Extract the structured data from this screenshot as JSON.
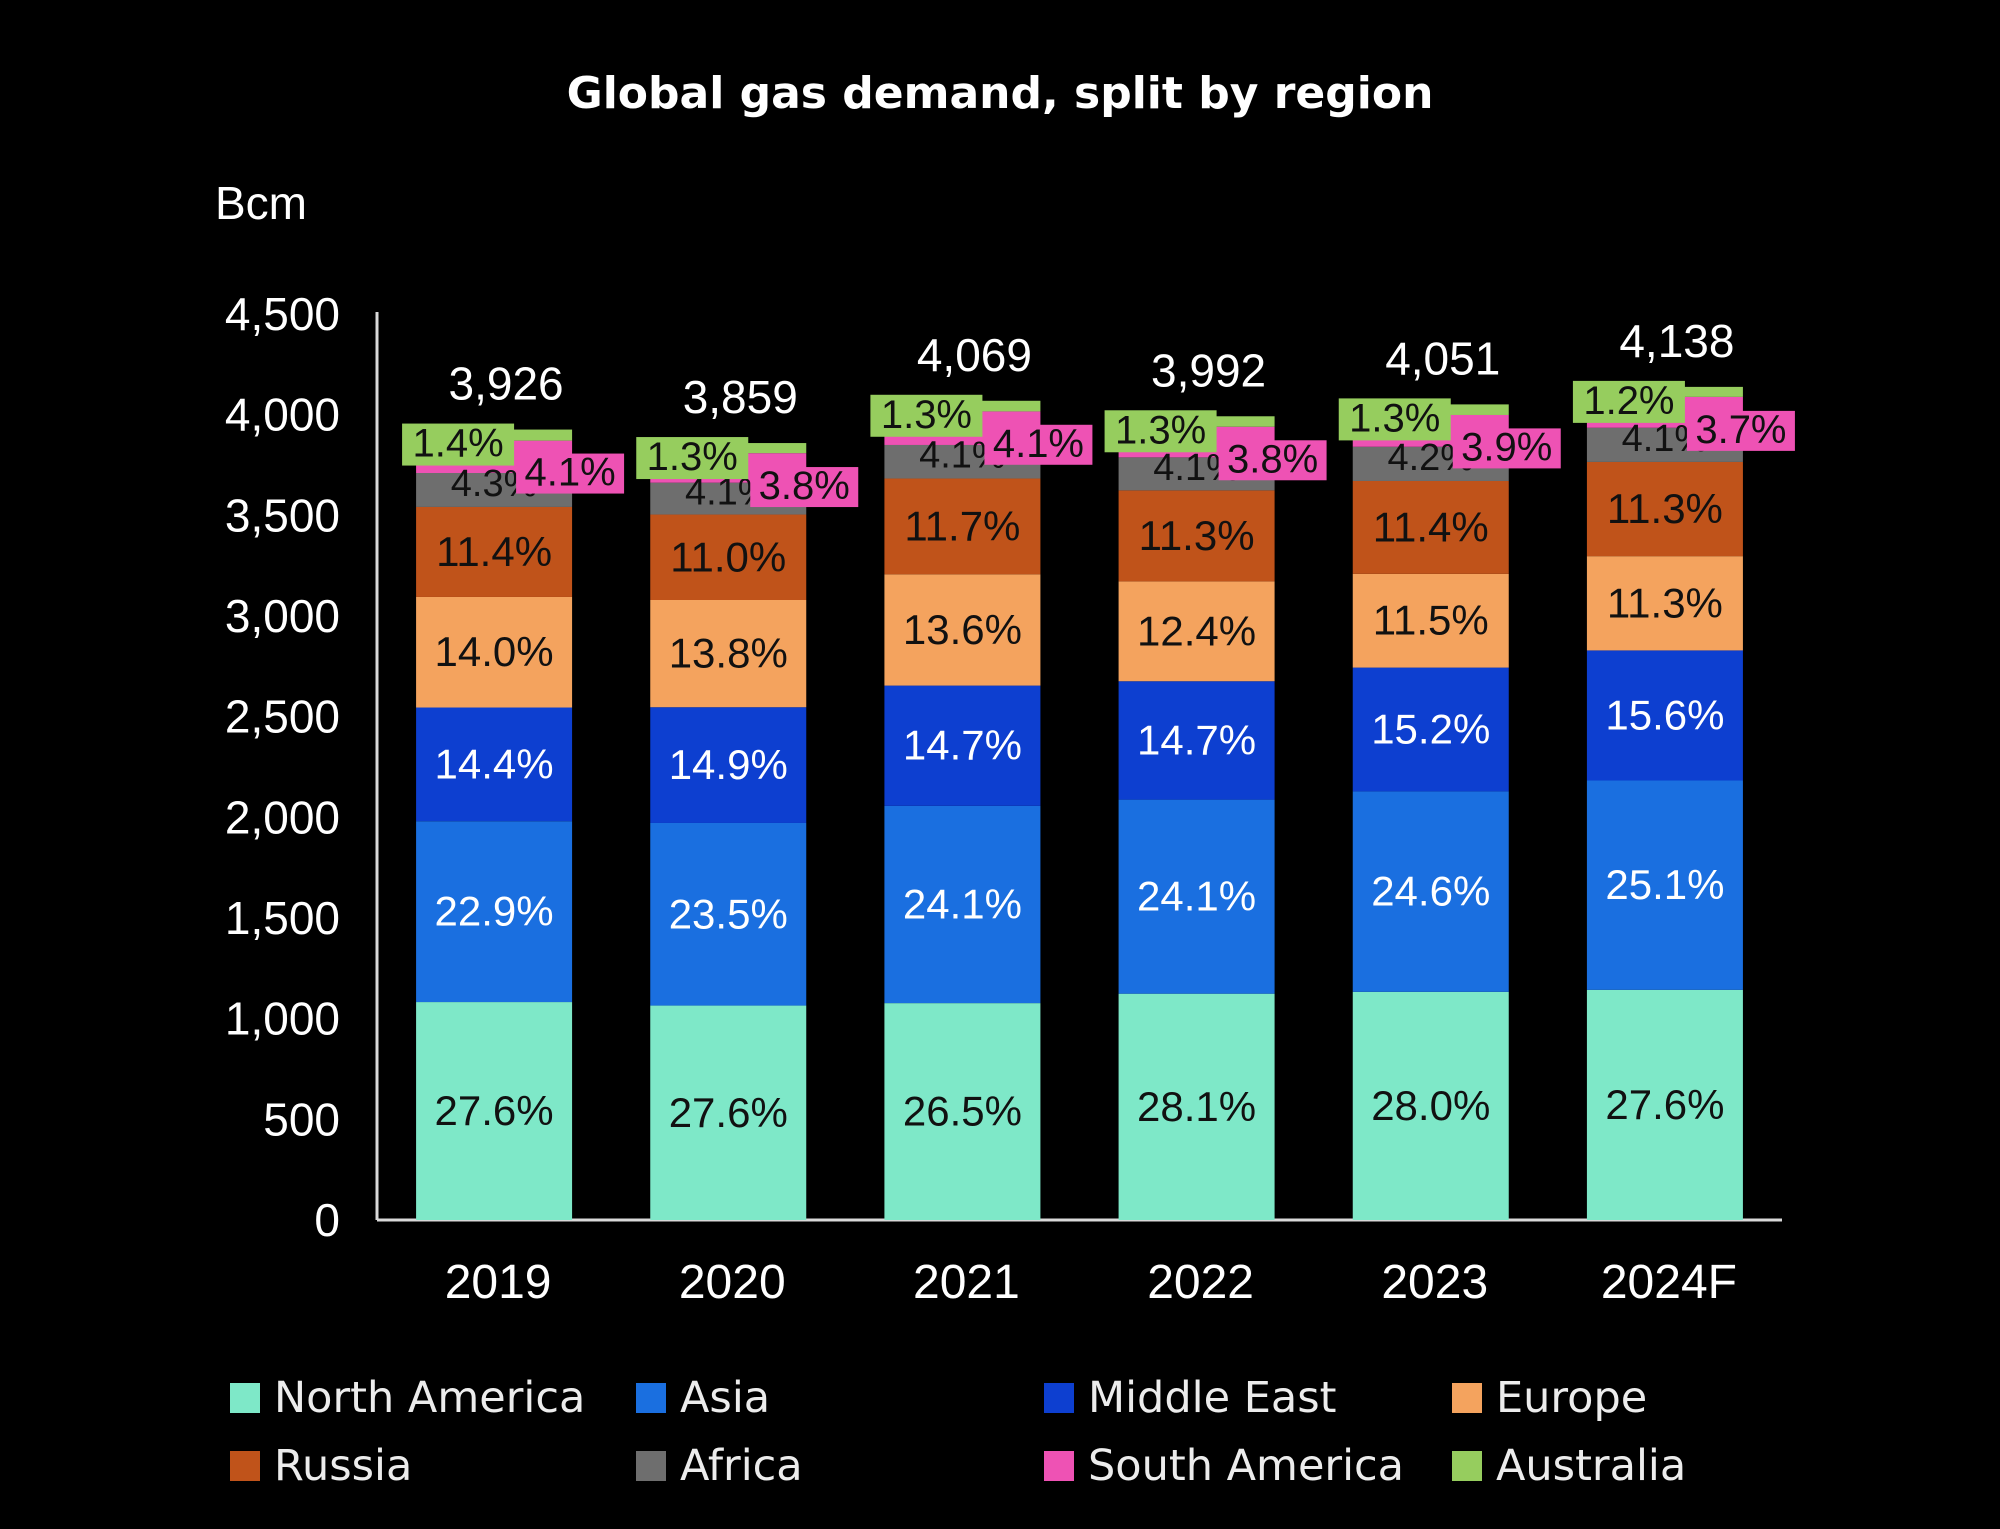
{
  "chart_data": {
    "type": "bar",
    "stacked": true,
    "title": "Global gas demand, split by region",
    "ylabel": "Bcm",
    "ylim": [
      0,
      4500
    ],
    "yticks": [
      0,
      500,
      1000,
      1500,
      2000,
      2500,
      3000,
      3500,
      4000,
      4500
    ],
    "ytick_labels": [
      "0",
      "500",
      "1,000",
      "1,500",
      "2,000",
      "2,500",
      "3,000",
      "3,500",
      "4,000",
      "4,500"
    ],
    "categories": [
      "2019",
      "2020",
      "2021",
      "2022",
      "2023",
      "2024F"
    ],
    "totals": [
      3926,
      3859,
      4069,
      3992,
      4051,
      4138
    ],
    "total_labels": [
      "3,926",
      "3,859",
      "4,069",
      "3,992",
      "4,051",
      "4,138"
    ],
    "grid": false,
    "legend_position": "bottom",
    "series": [
      {
        "name": "North America",
        "color": "#7ee8c8",
        "share_pct": [
          27.6,
          27.6,
          26.5,
          28.1,
          28.0,
          27.6
        ],
        "labels": [
          "27.6%",
          "27.6%",
          "26.5%",
          "28.1%",
          "28.0%",
          "27.6%"
        ]
      },
      {
        "name": "Asia",
        "color": "#1a6fe0",
        "share_pct": [
          22.9,
          23.5,
          24.1,
          24.1,
          24.6,
          25.1
        ],
        "labels": [
          "22.9%",
          "23.5%",
          "24.1%",
          "24.1%",
          "24.6%",
          "25.1%"
        ]
      },
      {
        "name": "Middle East",
        "color": "#0d3fd0",
        "share_pct": [
          14.4,
          14.9,
          14.7,
          14.7,
          15.2,
          15.6
        ],
        "labels": [
          "14.4%",
          "14.9%",
          "14.7%",
          "14.7%",
          "15.2%",
          "15.6%"
        ]
      },
      {
        "name": "Europe",
        "color": "#f4a35e",
        "share_pct": [
          14.0,
          13.8,
          13.6,
          12.4,
          11.5,
          11.3
        ],
        "labels": [
          "14.0%",
          "13.8%",
          "13.6%",
          "12.4%",
          "11.5%",
          "11.3%"
        ]
      },
      {
        "name": "Russia",
        "color": "#c0531a",
        "share_pct": [
          11.4,
          11.0,
          11.7,
          11.3,
          11.4,
          11.3
        ],
        "labels": [
          "11.4%",
          "11.0%",
          "11.7%",
          "11.3%",
          "11.4%",
          "11.3%"
        ]
      },
      {
        "name": "Africa",
        "color": "#6e6e6e",
        "share_pct": [
          4.3,
          4.1,
          4.1,
          4.1,
          4.2,
          4.1
        ],
        "labels": [
          "4.3%",
          "4.1%",
          "4.1%",
          "4.1%",
          "4.2%",
          "4.1%"
        ]
      },
      {
        "name": "South America",
        "color": "#ee52b4",
        "share_pct": [
          4.1,
          3.8,
          4.1,
          3.8,
          3.9,
          3.7
        ],
        "labels": [
          "4.1%",
          "3.8%",
          "4.1%",
          "3.8%",
          "3.9%",
          "3.7%"
        ]
      },
      {
        "name": "Australia",
        "color": "#96cd5e",
        "share_pct": [
          1.4,
          1.3,
          1.3,
          1.3,
          1.3,
          1.2
        ],
        "labels": [
          "1.4%",
          "1.3%",
          "1.3%",
          "1.3%",
          "1.3%",
          "1.2%"
        ]
      }
    ]
  },
  "legend": {
    "items": [
      {
        "label": "North America",
        "color": "#7ee8c8"
      },
      {
        "label": "Asia",
        "color": "#1a6fe0"
      },
      {
        "label": "Middle East",
        "color": "#0d3fd0"
      },
      {
        "label": "Europe",
        "color": "#f4a35e"
      },
      {
        "label": "Russia",
        "color": "#c0531a"
      },
      {
        "label": "Africa",
        "color": "#6e6e6e"
      },
      {
        "label": "South America",
        "color": "#ee52b4"
      },
      {
        "label": "Australia",
        "color": "#96cd5e"
      }
    ]
  }
}
